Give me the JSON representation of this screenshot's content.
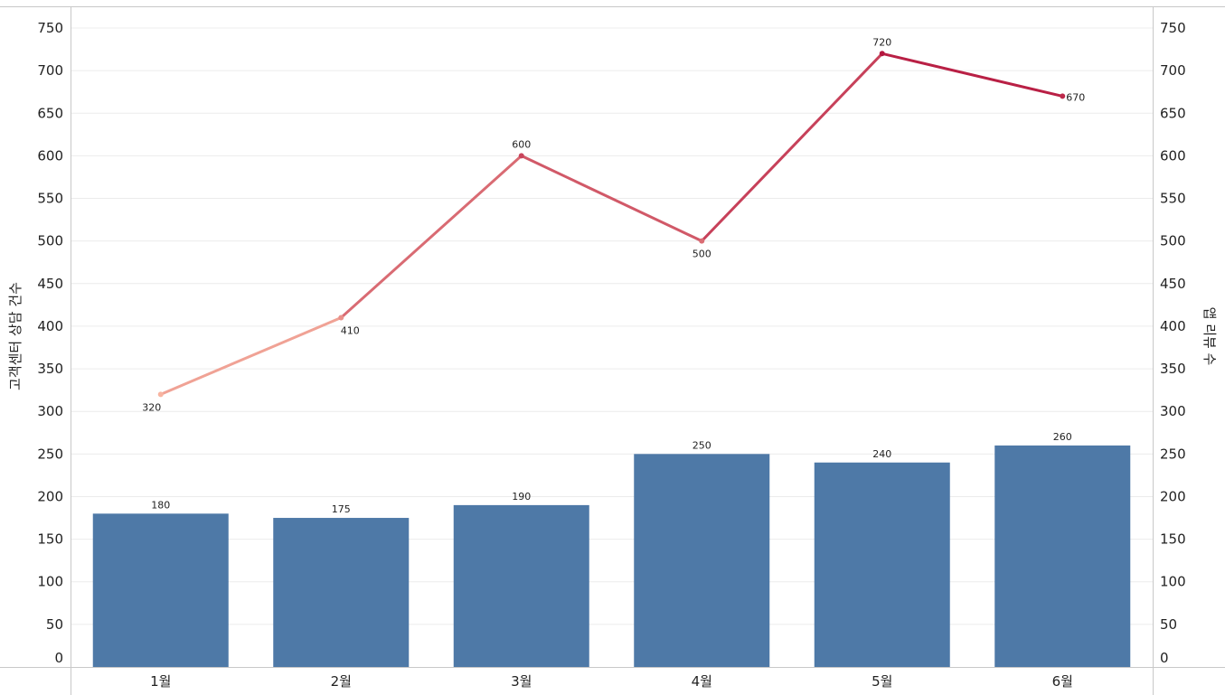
{
  "chart_data": {
    "type": "bar",
    "categories": [
      "1월",
      "2월",
      "3월",
      "4월",
      "5월",
      "6월"
    ],
    "series": [
      {
        "type": "bar",
        "axis": "left",
        "values": [
          180,
          175,
          190,
          250,
          240,
          260
        ],
        "color": "#4e79a7"
      },
      {
        "type": "line",
        "axis": "right",
        "values": [
          320,
          410,
          600,
          500,
          720,
          670
        ],
        "color_range": [
          "#f8b4a0",
          "#b5163f"
        ]
      }
    ],
    "ylabel": "고객센터 상담 건수",
    "y2label": "앱 리뷰 수",
    "ylim": [
      0,
      750
    ],
    "y2lim": [
      0,
      750
    ],
    "yticks": [
      0,
      50,
      100,
      150,
      200,
      250,
      300,
      350,
      400,
      450,
      500,
      550,
      600,
      650,
      700,
      750
    ],
    "grid": true,
    "legend": "none"
  }
}
